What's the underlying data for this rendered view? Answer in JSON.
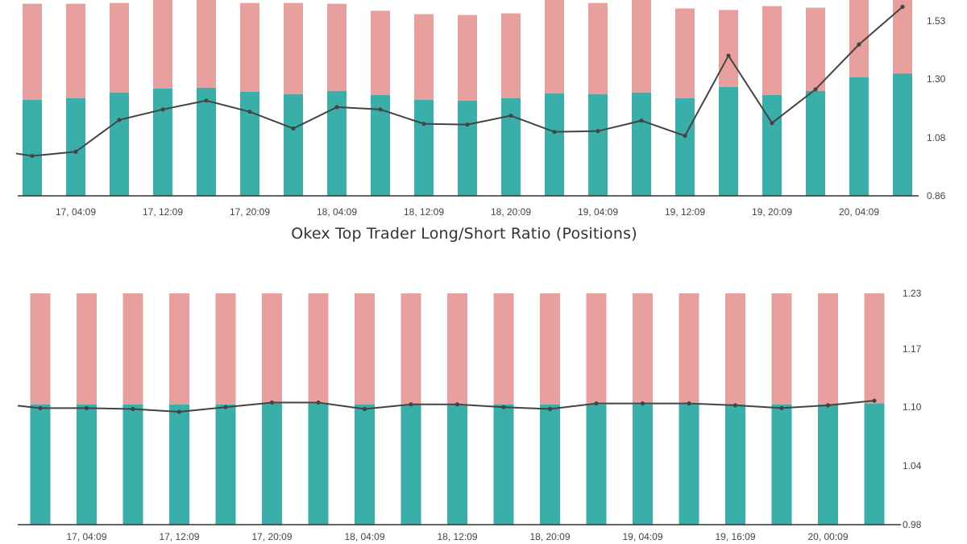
{
  "colors": {
    "long": "#3aafa9",
    "short": "#e8a09e",
    "ratio_line": "#444444",
    "axis": "#333333"
  },
  "chart_data": [
    {
      "type": "bar",
      "title": "",
      "stacked": true,
      "grid": false,
      "y_axis_position": "right",
      "ylim": [
        0.86,
        1.6
      ],
      "y_ticks": [
        "0.86",
        "1.08",
        "1.30",
        "1.53"
      ],
      "x_tick_labels": [
        "17, 04:09",
        "17, 12:09",
        "17, 20:09",
        "18, 04:09",
        "18, 12:09",
        "18, 20:09",
        "19, 04:09",
        "19, 12:09",
        "19, 20:09",
        "20, 04:09"
      ],
      "long_bar_top": [
        1.228,
        1.234,
        1.256,
        1.271,
        1.274,
        1.259,
        1.25,
        1.262,
        1.246,
        1.228,
        1.225,
        1.234,
        1.253,
        1.25,
        1.256,
        1.234,
        1.277,
        1.246,
        1.262,
        1.314,
        1.329
      ],
      "short_bar_top": [
        1.596,
        1.596,
        1.599,
        1.612,
        1.612,
        1.599,
        1.599,
        1.596,
        1.569,
        1.556,
        1.553,
        1.559,
        1.612,
        1.599,
        1.612,
        1.578,
        1.572,
        1.587,
        1.581,
        1.612,
        1.612
      ],
      "ratio_line": [
        1.013,
        1.029,
        1.151,
        1.191,
        1.225,
        1.182,
        1.118,
        1.2,
        1.191,
        1.136,
        1.133,
        1.167,
        1.105,
        1.108,
        1.148,
        1.09,
        1.397,
        1.139,
        1.268,
        1.44,
        1.584
      ]
    },
    {
      "type": "bar",
      "title": "Okex Top Trader Long/Short Ratio (Positions)",
      "stacked": true,
      "grid": false,
      "y_axis_position": "right",
      "ylim": [
        0.98,
        1.23
      ],
      "y_ticks": [
        "0.98",
        "1.04",
        "1.10",
        "1.17",
        "1.23"
      ],
      "x_tick_labels": [
        "17, 04:09",
        "17, 12:09",
        "17, 20:09",
        "18, 04:09",
        "18, 12:09",
        "18, 20:09",
        "19, 04:09",
        "19, 16:09",
        "20, 00:09"
      ],
      "long_bar_top": [
        1.11,
        1.11,
        1.11,
        1.11,
        1.11,
        1.111,
        1.111,
        1.11,
        1.11,
        1.11,
        1.11,
        1.11,
        1.11,
        1.11,
        1.11,
        1.11,
        1.11,
        1.11,
        1.111
      ],
      "short_bar_top": [
        1.23,
        1.23,
        1.23,
        1.23,
        1.23,
        1.23,
        1.23,
        1.23,
        1.23,
        1.23,
        1.23,
        1.23,
        1.23,
        1.23,
        1.23,
        1.23,
        1.23,
        1.23,
        1.23
      ],
      "ratio_line": [
        1.106,
        1.106,
        1.105,
        1.102,
        1.107,
        1.112,
        1.112,
        1.105,
        1.11,
        1.11,
        1.107,
        1.105,
        1.111,
        1.111,
        1.111,
        1.109,
        1.106,
        1.109,
        1.114
      ]
    }
  ]
}
